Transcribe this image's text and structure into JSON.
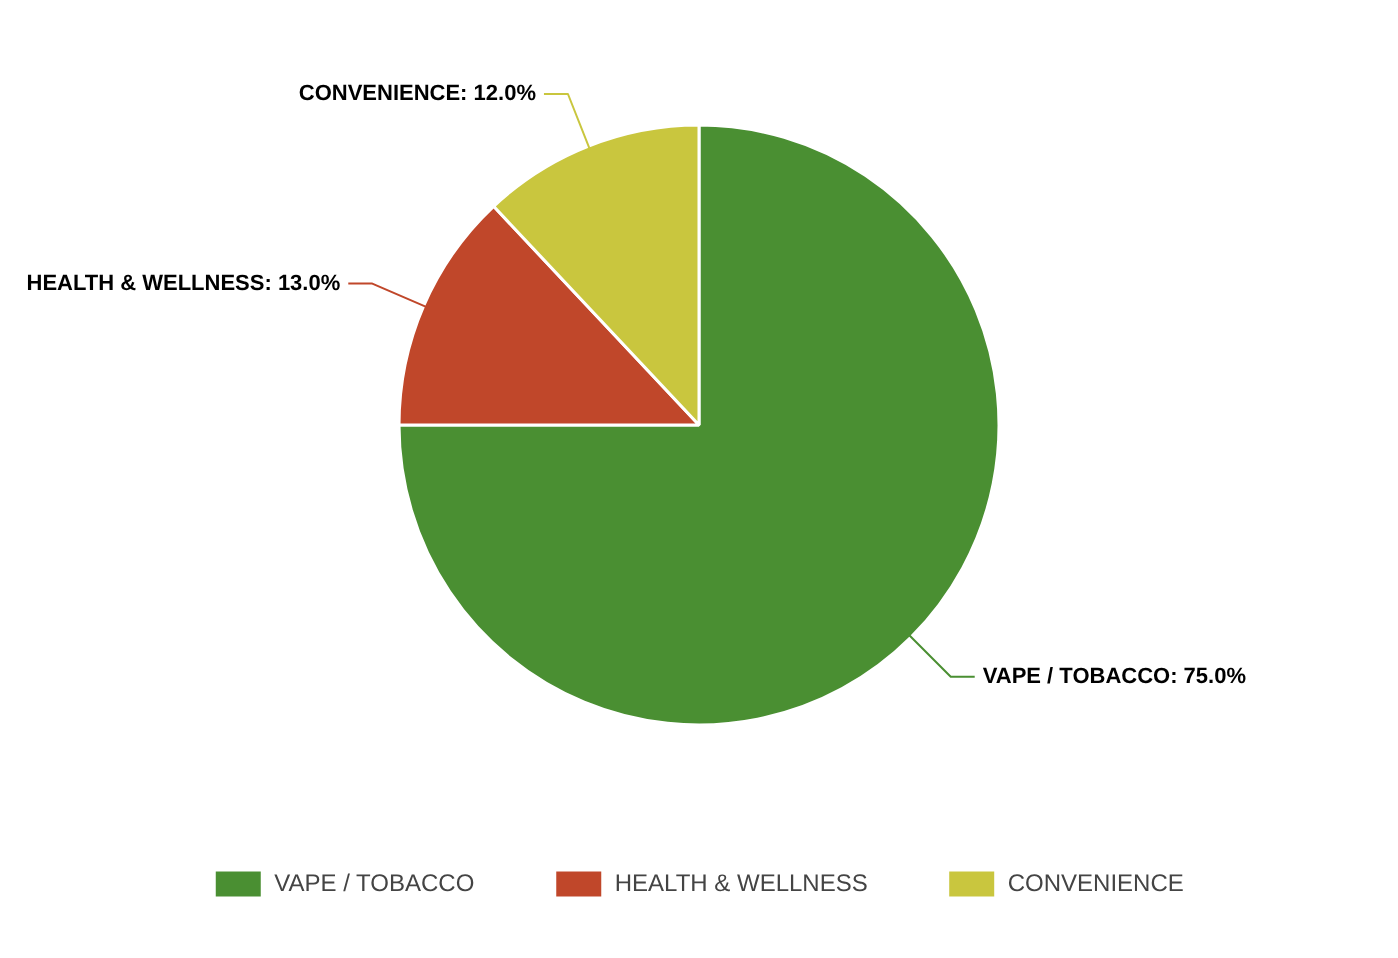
{
  "chart_data": {
    "type": "pie",
    "categories": [
      "VAPE / TOBACCO",
      "HEALTH & WELLNESS",
      "CONVENIENCE"
    ],
    "values": [
      75,
      13,
      12
    ],
    "colors": [
      "#4a8f32",
      "#c0472a",
      "#c9c63e"
    ],
    "value_labels": [
      "VAPE / TOBACCO: 75.0%",
      "HEALTH & WELLNESS: 13.0%",
      "CONVENIENCE: 12.0%"
    ],
    "legend": "bottom"
  }
}
